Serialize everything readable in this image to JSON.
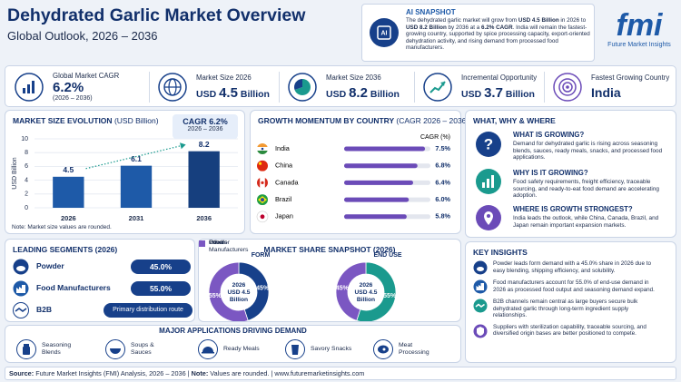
{
  "header": {
    "title": "Dehydrated Garlic Market Overview",
    "subtitle": "Global Outlook, 2026 – 2036"
  },
  "ai_snapshot": {
    "title": "AI SNAPSHOT",
    "text": [
      "The dehydrated garlic market will grow from ",
      "USD 4.5 Billion",
      " in 2026 to ",
      "USD 8.2 Billion",
      " by 2036 at a ",
      "6.2% CAGR",
      ". India will remain the fastest-growing country, supported by spice processing capacity, export-oriented dehydration activity, and rising demand from processed food manufacturers."
    ]
  },
  "logo": {
    "name": "fmi",
    "tagline": "Future Market Insights"
  },
  "kpis": [
    {
      "label": "Global Market CAGR",
      "value": "6.2%",
      "note": "(2026 – 2036)"
    },
    {
      "label": "Market Size 2026",
      "unit": "USD",
      "value": "4.5",
      "suffix": "Billion"
    },
    {
      "label": "Market Size 2036",
      "unit": "USD",
      "value": "8.2",
      "suffix": "Billion"
    },
    {
      "label": "Incremental Opportunity",
      "unit": "USD",
      "value": "3.7",
      "suffix": "Billion"
    },
    {
      "label": "Fastest Growing Country",
      "value": "India"
    }
  ],
  "chart_data": [
    {
      "type": "bar",
      "title": "MARKET SIZE EVOLUTION",
      "title_unit": "(USD Billion)",
      "y_label": "USD Billion",
      "categories": [
        "2026",
        "2031",
        "2036"
      ],
      "values": [
        4.5,
        6.1,
        8.2
      ],
      "colors": [
        "#1e5aa8",
        "#1e5aa8",
        "#163f7e"
      ],
      "ylim": [
        0,
        10
      ],
      "yticks": [
        0,
        2,
        4,
        6,
        8,
        10
      ],
      "grid": true,
      "badge": {
        "title": "CAGR",
        "value": "6.2%",
        "period": "2026 – 2036"
      },
      "note": "Note: Market size values are rounded."
    },
    {
      "type": "barh",
      "title": "GROWTH MOMENTUM BY COUNTRY",
      "title_unit": "(CAGR 2026 – 2036)",
      "x_label": "CAGR (%)",
      "categories": [
        "India",
        "China",
        "Canada",
        "Brazil",
        "Japan"
      ],
      "values": [
        7.5,
        6.8,
        6.4,
        6.0,
        5.8
      ],
      "value_labels": [
        "7.5%",
        "6.8%",
        "6.4%",
        "6.0%",
        "5.8%"
      ],
      "color": "#6b4bb8",
      "track_color": "#e3e6ee",
      "xlim": [
        0,
        8
      ]
    },
    {
      "type": "donut",
      "title": "FORM",
      "center_label": [
        "2026",
        "USD 4.5",
        "Billion"
      ],
      "categories": [
        "Powder",
        "Others"
      ],
      "values": [
        45,
        55
      ],
      "value_labels": [
        "45%",
        "55%"
      ],
      "colors": [
        "#17408a",
        "#7b57c2"
      ]
    },
    {
      "type": "donut",
      "title": "END USE",
      "center_label": [
        "2026",
        "USD 4.5",
        "Billion"
      ],
      "categories": [
        "Food Manufacturers",
        "Others"
      ],
      "values": [
        55,
        45
      ],
      "value_labels": [
        "55%",
        "45%"
      ],
      "colors": [
        "#1a9a8e",
        "#7b57c2"
      ]
    }
  ],
  "market_share": {
    "title": "MARKET SHARE SNAPSHOT (2026)"
  },
  "leading_segments": {
    "title": "LEADING SEGMENTS (2026)",
    "rows": [
      {
        "name": "Powder",
        "value": "45.0%"
      },
      {
        "name": "Food Manufacturers",
        "value": "55.0%"
      },
      {
        "name": "B2B",
        "value": "Primary distribution route"
      }
    ]
  },
  "what_why_where": {
    "title": "WHAT, WHY & WHERE",
    "items": [
      {
        "heading": "WHAT IS GROWING?",
        "text": "Demand for dehydrated garlic is rising across seasoning blends, sauces, ready meals, snacks, and processed food applications."
      },
      {
        "heading": "WHY IS IT GROWING?",
        "text": "Food safety requirements, freight efficiency, traceable sourcing, and ready-to-eat food demand are accelerating adoption."
      },
      {
        "heading": "WHERE IS GROWTH STRONGEST?",
        "text": "India leads the outlook, while China, Canada, Brazil, and Japan remain important expansion markets."
      }
    ]
  },
  "key_insights": {
    "title": "KEY INSIGHTS",
    "items": [
      "Powder leads form demand with a 45.0% share in 2026 due to easy blending, shipping efficiency, and solubility.",
      "Food manufacturers account for 55.0% of end-use demand in 2026 as processed food output and seasoning demand expand.",
      "B2B channels remain central as large buyers secure bulk dehydrated garlic through long-term ingredient supply relationships.",
      "Suppliers with sterilization capability, traceable sourcing, and diversified origin bases are better positioned to compete."
    ]
  },
  "applications": {
    "title": "MAJOR APPLICATIONS DRIVING DEMAND",
    "items": [
      "Seasoning Blends",
      "Soups & Sauces",
      "Ready Meals",
      "Savory Snacks",
      "Meat Processing"
    ]
  },
  "footer": [
    "Source:",
    " Future Market Insights (FMI) Analysis, 2026 – 2036 | ",
    "Note:",
    " Values are rounded. | www.futuremarketinsights.com"
  ]
}
